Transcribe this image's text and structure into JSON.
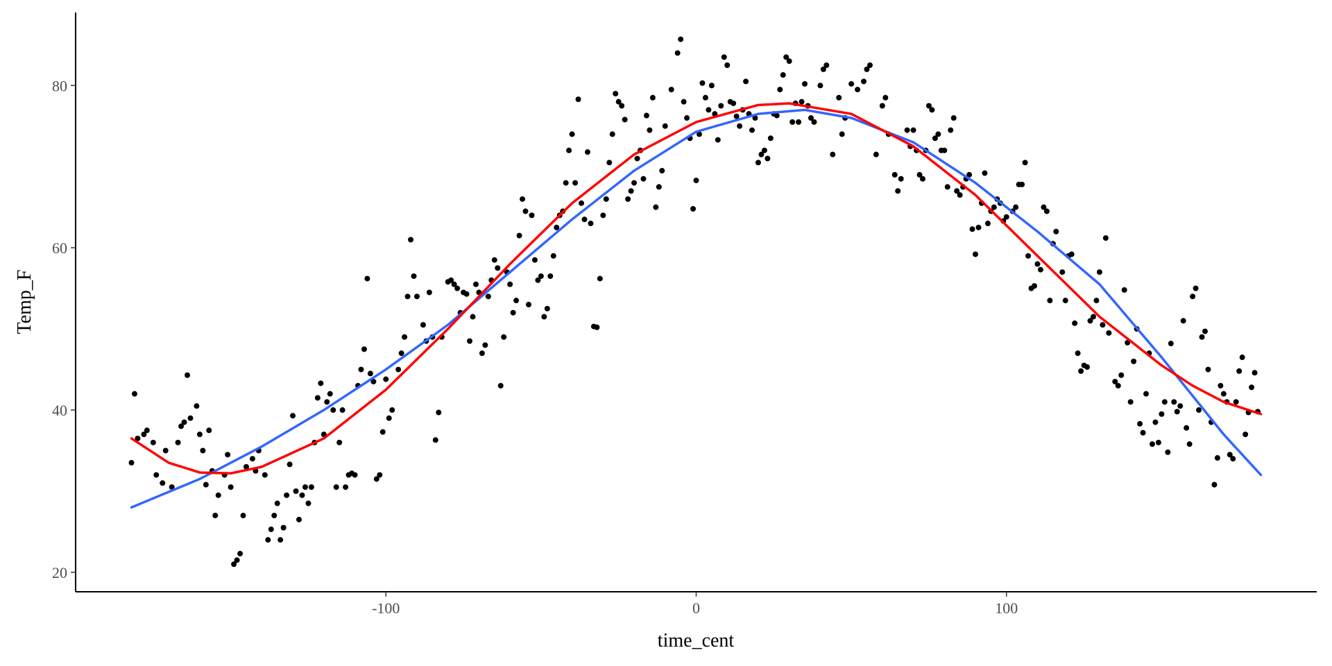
{
  "chart_data": {
    "type": "scatter",
    "x_label": "time_cent",
    "y_label": "Temp_F",
    "xlim": [
      -200,
      200
    ],
    "ylim": [
      17.6,
      89
    ],
    "xticks": [
      -100,
      0,
      100
    ],
    "yticks": [
      20,
      40,
      60,
      80
    ],
    "series": [
      {
        "type": "scatter",
        "color": "#000000",
        "x": [
          -182,
          -181,
          -180,
          -178,
          -177,
          -175,
          -174,
          -172,
          -171,
          -169,
          -167,
          -166,
          -165,
          -164,
          -163,
          -161,
          -160,
          -159,
          -158,
          -157,
          -156,
          -155,
          -154,
          -152,
          -151,
          -150,
          -149,
          -148,
          -147,
          -146,
          -145,
          -143,
          -142,
          -141,
          -139,
          -138,
          -137,
          -136,
          -135,
          -134,
          -133,
          -132,
          -131,
          -130,
          -129,
          -128,
          -127,
          -126,
          -125,
          -124,
          -123,
          -122,
          -121,
          -120,
          -119,
          -118,
          -117,
          -116,
          -115,
          -114,
          -113,
          -112,
          -111,
          -110,
          -109,
          -108,
          -107,
          -106,
          -105,
          -104,
          -103,
          -102,
          -101,
          -100,
          -99,
          -98,
          -96,
          -95,
          -94,
          -93,
          -92,
          -91,
          -90,
          -88,
          -87,
          -86,
          -85,
          -84,
          -83,
          -82,
          -80,
          -79,
          -78,
          -77,
          -76,
          -75,
          -74,
          -73,
          -72,
          -71,
          -70,
          -69,
          -68,
          -67,
          -66,
          -65,
          -64,
          -63,
          -62,
          -61,
          -60,
          -59,
          -58,
          -57,
          -56,
          -55,
          -54,
          -53,
          -52,
          -51,
          -50,
          -49,
          -48,
          -47,
          -46,
          -45,
          -44,
          -43,
          -42,
          -41,
          -40,
          -39,
          -38,
          -37,
          -36,
          -35,
          -34,
          -33,
          -32,
          -31,
          -30,
          -29,
          -28,
          -27,
          -26,
          -25,
          -24,
          -23,
          -22,
          -21,
          -20,
          -19,
          -18,
          -17,
          -16,
          -15,
          -14,
          -13,
          -12,
          -11,
          -10,
          -8,
          -6,
          -5,
          -4,
          -3,
          -2,
          -1,
          0,
          1,
          2,
          3,
          4,
          5,
          6,
          7,
          8,
          9,
          10,
          11,
          12,
          13,
          14,
          15,
          16,
          17,
          18,
          19,
          20,
          21,
          22,
          23,
          24,
          25,
          26,
          27,
          28,
          29,
          30,
          31,
          32,
          33,
          34,
          35,
          36,
          37,
          38,
          40,
          41,
          42,
          44,
          46,
          47,
          48,
          50,
          52,
          54,
          55,
          56,
          58,
          60,
          61,
          62,
          64,
          65,
          66,
          68,
          69,
          70,
          71,
          72,
          73,
          74,
          75,
          76,
          77,
          78,
          79,
          80,
          81,
          82,
          83,
          84,
          85,
          86,
          87,
          88,
          89,
          90,
          91,
          92,
          93,
          94,
          95,
          96,
          97,
          98,
          99,
          100,
          102,
          103,
          104,
          105,
          106,
          107,
          108,
          109,
          110,
          111,
          112,
          113,
          114,
          115,
          116,
          118,
          119,
          120,
          121,
          122,
          123,
          124,
          125,
          126,
          127,
          128,
          129,
          130,
          131,
          132,
          133,
          135,
          136,
          137,
          138,
          139,
          140,
          141,
          142,
          143,
          144,
          145,
          146,
          147,
          148,
          149,
          150,
          151,
          152,
          153,
          154,
          155,
          156,
          157,
          158,
          159,
          160,
          161,
          162,
          163,
          164,
          165,
          166,
          167,
          168,
          169,
          170,
          171,
          172,
          173,
          174,
          175,
          176,
          177,
          178,
          179,
          180,
          181
        ],
        "values": [
          33.5,
          42,
          36.5,
          37,
          37.5,
          36,
          32,
          31,
          35,
          30.5,
          36,
          38,
          38.5,
          44.3,
          39,
          40.5,
          37,
          35,
          30.8,
          37.5,
          32.5,
          27,
          29.5,
          32,
          34.5,
          30.5,
          21,
          21.5,
          22.3,
          27,
          33,
          34,
          32.5,
          35,
          32,
          24,
          25.3,
          27,
          28.5,
          24,
          25.5,
          29.5,
          33.3,
          39.3,
          30,
          26.5,
          29.5,
          30.5,
          28.5,
          30.5,
          36,
          41.5,
          43.3,
          37,
          41,
          42,
          40,
          30.5,
          36,
          40,
          30.5,
          32,
          32.2,
          32,
          43,
          45,
          47.5,
          56.2,
          44.5,
          43.5,
          31.5,
          32,
          37.3,
          43.8,
          39,
          40,
          45,
          47,
          49,
          54,
          61,
          56.5,
          54,
          50.5,
          48.5,
          54.5,
          49,
          36.3,
          39.7,
          49,
          55.8,
          56,
          55.5,
          55,
          52,
          54.5,
          54.3,
          48.5,
          51.5,
          55.5,
          54.5,
          47,
          48,
          54,
          56,
          58.5,
          57.5,
          43,
          49,
          57,
          55.5,
          52,
          53.5,
          61.5,
          66,
          64.5,
          53,
          64,
          58.5,
          56,
          56.5,
          51.5,
          52.5,
          56.5,
          59,
          62.5,
          64,
          64.5,
          68,
          72,
          74,
          68,
          78.3,
          65.5,
          63.5,
          71.8,
          63,
          50.3,
          50.2,
          56.2,
          64,
          66,
          70.5,
          74,
          79,
          78,
          77.5,
          75.8,
          66,
          67,
          68,
          71,
          72,
          68.5,
          76.3,
          74.5,
          78.5,
          65,
          67.5,
          69.5,
          75,
          79.5,
          84,
          85.7,
          78,
          76,
          73.5,
          64.8,
          68.3,
          74,
          80.3,
          78.5,
          77,
          80,
          76.5,
          73.3,
          77.5,
          83.5,
          82.5,
          78,
          77.8,
          76.2,
          75,
          77,
          80.5,
          76.5,
          74.5,
          76,
          70.5,
          71.5,
          72,
          71,
          73.5,
          76.5,
          76.3,
          79.5,
          81.3,
          83.5,
          83,
          75.5,
          77.8,
          75.5,
          78,
          80.2,
          77.5,
          76,
          75.5,
          80,
          82,
          82.5,
          71.5,
          78.5,
          74,
          76,
          80.2,
          79.5,
          80.5,
          82,
          82.5,
          71.5,
          77.5,
          78.5,
          74,
          69,
          67,
          68.5,
          74.5,
          72.5,
          74.5,
          72,
          69,
          68.5,
          72,
          77.5,
          77,
          73.5,
          74,
          72,
          72,
          67.5,
          74.5,
          76,
          67,
          66.5,
          67.5,
          68.5,
          69,
          62.3,
          59.2,
          62.5,
          65.5,
          69.2,
          63,
          64.5,
          65,
          66,
          65.5,
          63.3,
          63.8,
          64.5,
          65,
          67.8,
          67.8,
          70.5,
          59,
          55,
          55.3,
          58,
          57.3,
          65,
          64.5,
          53.5,
          60.5,
          62,
          57,
          53.5,
          59,
          59.2,
          50.7,
          47,
          44.8,
          45.5,
          45.3,
          51,
          51.5,
          53.5,
          57,
          50.5,
          61.2,
          49.5,
          43.5,
          43,
          44.3,
          54.8,
          48.3,
          41,
          46,
          50,
          38.3,
          37.2,
          42,
          47,
          35.8,
          38.5,
          36,
          39.5,
          41,
          34.8,
          48.2,
          41,
          39.8,
          40.5,
          51,
          37.8,
          35.8,
          54,
          55,
          40,
          49,
          49.7,
          45,
          38.5,
          30.8,
          34.1,
          43,
          42,
          41,
          34.5,
          34,
          41,
          44.8,
          46.5,
          37,
          39.7,
          42.8,
          44.6,
          39.8
        ]
      },
      {
        "type": "line",
        "color": "#3366ff",
        "x": [
          -182,
          -160,
          -140,
          -120,
          -100,
          -80,
          -60,
          -40,
          -20,
          0,
          20,
          35,
          50,
          70,
          90,
          110,
          130,
          150,
          170,
          182
        ],
        "values": [
          28,
          31.5,
          35.5,
          40,
          45,
          50.5,
          57,
          63.5,
          69.5,
          74.3,
          76.5,
          77,
          76,
          73,
          68,
          62,
          55.5,
          46.5,
          37,
          32
        ]
      },
      {
        "type": "line",
        "color": "#ff0000",
        "x": [
          -182,
          -170,
          -160,
          -150,
          -140,
          -120,
          -100,
          -80,
          -60,
          -40,
          -20,
          0,
          20,
          30,
          50,
          70,
          90,
          110,
          130,
          150,
          160,
          170,
          182
        ],
        "values": [
          36.5,
          33.5,
          32.3,
          32.2,
          33,
          36.5,
          42.5,
          50,
          58,
          65.5,
          71.5,
          75.5,
          77.6,
          77.8,
          76.5,
          72.5,
          66.5,
          59,
          51.5,
          45.5,
          43,
          41,
          39.5
        ]
      }
    ]
  }
}
